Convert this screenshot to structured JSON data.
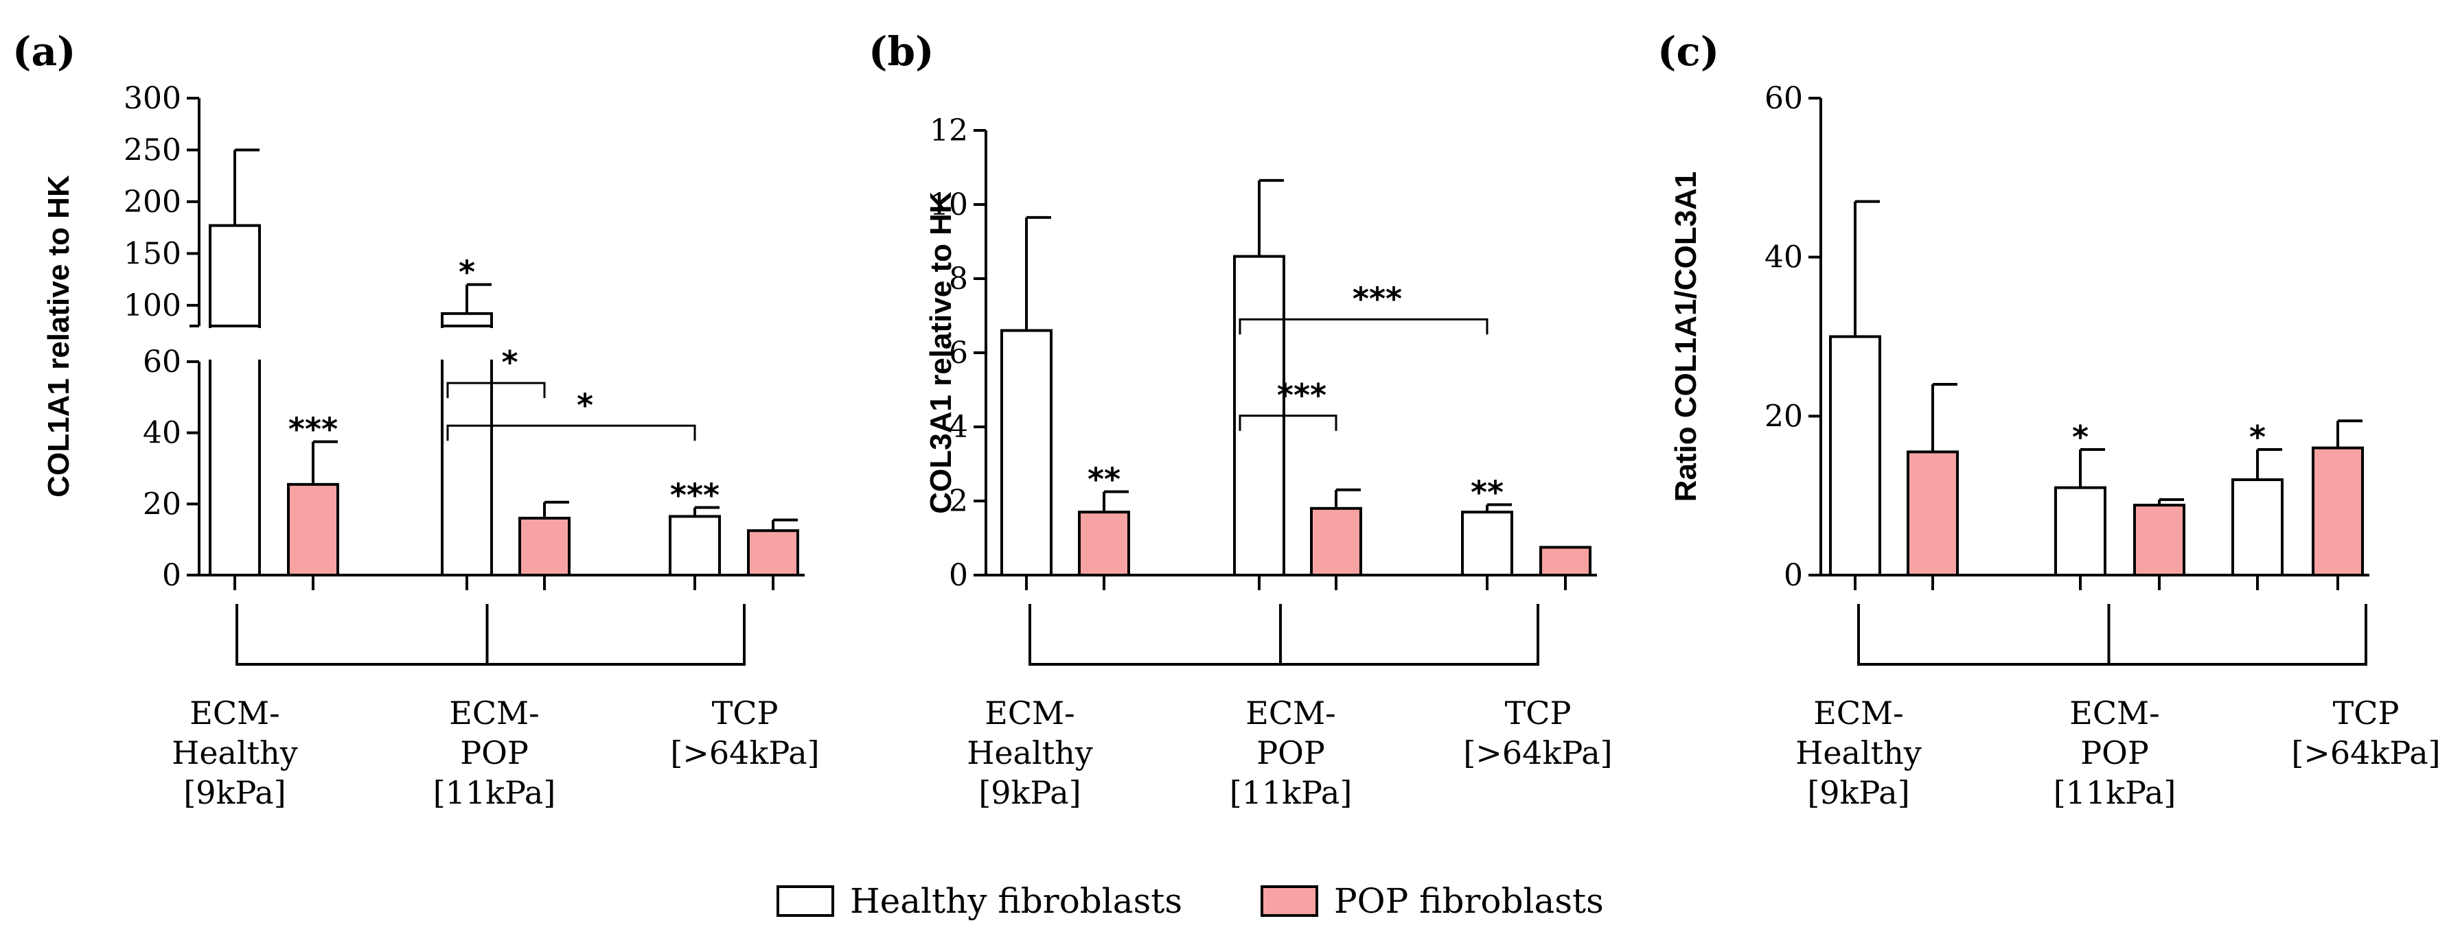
{
  "legend": {
    "healthy_label": "Healthy fibroblasts",
    "pop_label": "POP fibroblasts",
    "healthy_color": "#ffffff",
    "pop_color": "#f7a3a3"
  },
  "chart_data": [
    {
      "type": "bar",
      "panel": "(a)",
      "ylabel": "COL1A1 relative to HK",
      "ylim": [
        0,
        300
      ],
      "axis_break": {
        "lower_range": [
          0,
          60
        ],
        "upper_range": [
          80,
          300
        ]
      },
      "yticks_lower": [
        0,
        20,
        40,
        60
      ],
      "yticks_upper": [
        100,
        150,
        200,
        250,
        300
      ],
      "ytick_labels_lower": [
        "0",
        "20",
        "40",
        "60"
      ],
      "ytick_labels_upper": [
        "100",
        "150",
        "200",
        "250",
        "300"
      ],
      "categories": [
        {
          "lines": [
            "ECM-",
            "Healthy",
            "[9kPa]"
          ]
        },
        {
          "lines": [
            "ECM-",
            "POP",
            "[11kPa]"
          ]
        },
        {
          "lines": [
            "TCP",
            "[>64kPa]"
          ]
        }
      ],
      "series": [
        {
          "name": "Healthy fibroblasts",
          "values": [
            177,
            92,
            16.5
          ],
          "errors": [
            73,
            28,
            2.5
          ],
          "stars": [
            "",
            "*",
            "***"
          ]
        },
        {
          "name": "POP fibroblasts",
          "values": [
            25.5,
            16,
            12.5
          ],
          "errors": [
            12,
            4.5,
            3
          ],
          "stars": [
            "***",
            "",
            ""
          ]
        }
      ],
      "comparisons": [
        {
          "from": [
            1,
            0
          ],
          "to": [
            1,
            1
          ],
          "y": 54,
          "label": "*"
        },
        {
          "from": [
            1,
            0
          ],
          "to": [
            2,
            0
          ],
          "y": 42,
          "label": "*"
        }
      ]
    },
    {
      "type": "bar",
      "panel": "(b)",
      "ylabel": "COL3A1 relative to HK",
      "ylim": [
        0,
        12
      ],
      "yticks": [
        0,
        2,
        4,
        6,
        8,
        10,
        12
      ],
      "ytick_labels": [
        "0",
        "2",
        "4",
        "6",
        "8",
        "10",
        "12"
      ],
      "categories": [
        {
          "lines": [
            "ECM-",
            "Healthy",
            "[9kPa]"
          ]
        },
        {
          "lines": [
            "ECM-",
            "POP",
            "[11kPa]"
          ]
        },
        {
          "lines": [
            "TCP",
            "[>64kPa]"
          ]
        }
      ],
      "series": [
        {
          "name": "Healthy fibroblasts",
          "values": [
            6.6,
            8.6,
            1.7
          ],
          "errors": [
            3.05,
            2.05,
            0.2
          ],
          "stars": [
            "",
            "",
            "**"
          ]
        },
        {
          "name": "POP fibroblasts",
          "values": [
            1.7,
            1.8,
            0.75
          ],
          "errors": [
            0.55,
            0.5,
            0
          ],
          "stars": [
            "**",
            "",
            ""
          ]
        }
      ],
      "comparisons": [
        {
          "from": [
            1,
            0
          ],
          "to": [
            1,
            1
          ],
          "y": 4.3,
          "label": "***"
        },
        {
          "from": [
            1,
            0
          ],
          "to": [
            2,
            0
          ],
          "y": 6.9,
          "label": "***"
        }
      ]
    },
    {
      "type": "bar",
      "panel": "(c)",
      "ylabel": "Ratio COL1A1/COL3A1",
      "ylim": [
        0,
        60
      ],
      "yticks": [
        0,
        20,
        40,
        60
      ],
      "ytick_labels": [
        "0",
        "20",
        "40",
        "60"
      ],
      "categories": [
        {
          "lines": [
            "ECM-",
            "Healthy",
            "[9kPa]"
          ]
        },
        {
          "lines": [
            "ECM-",
            "POP",
            "[11kPa]"
          ]
        },
        {
          "lines": [
            "TCP",
            "[>64kPa]"
          ]
        }
      ],
      "series": [
        {
          "name": "Healthy fibroblasts",
          "values": [
            30,
            11,
            12
          ],
          "errors": [
            17,
            4.8,
            3.8
          ],
          "stars": [
            "",
            "*",
            "*"
          ]
        },
        {
          "name": "POP fibroblasts",
          "values": [
            15.5,
            8.8,
            16
          ],
          "errors": [
            8.5,
            0.7,
            3.4
          ],
          "stars": [
            "",
            "",
            ""
          ]
        }
      ],
      "comparisons": []
    }
  ]
}
